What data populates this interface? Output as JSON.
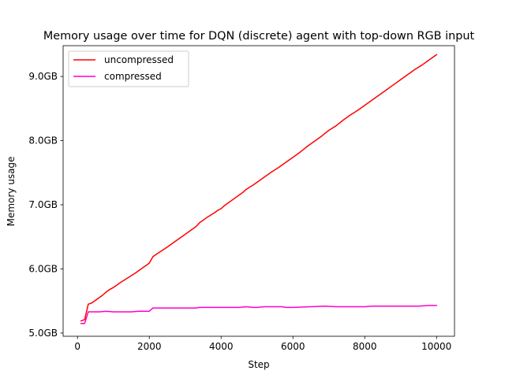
{
  "chart_data": {
    "type": "line",
    "title": "Memory usage over time for DQN (discrete) agent with top-down RGB input",
    "xlabel": "Step",
    "ylabel": "Memory usage",
    "xlim": [
      -400,
      10500
    ],
    "ylim": [
      4.95,
      9.48
    ],
    "x_ticks": [
      0,
      2000,
      4000,
      6000,
      8000,
      10000
    ],
    "x_tick_labels": [
      "0",
      "2000",
      "4000",
      "6000",
      "8000",
      "10000"
    ],
    "y_ticks": [
      5.0,
      6.0,
      7.0,
      8.0,
      9.0
    ],
    "y_tick_labels": [
      "5.0GB",
      "6.0GB",
      "7.0GB",
      "8.0GB",
      "9.0GB"
    ],
    "grid": false,
    "legend_position": "upper-left",
    "series": [
      {
        "name": "uncompressed",
        "color": "#ff0000",
        "x": [
          100,
          200,
          300,
          400,
          500,
          600,
          700,
          800,
          900,
          1000,
          1200,
          1400,
          1600,
          1700,
          1800,
          1900,
          2000,
          2100,
          2200,
          2500,
          3000,
          3300,
          3400,
          3600,
          3800,
          3900,
          4000,
          4100,
          4300,
          4500,
          4600,
          4700,
          4900,
          5000,
          5200,
          5400,
          5600,
          5700,
          5800,
          6000,
          6200,
          6400,
          6600,
          6800,
          7000,
          7200,
          7400,
          7600,
          7800,
          8000,
          8200,
          8400,
          8600,
          8800,
          9000,
          9200,
          9400,
          9600,
          9800,
          10000
        ],
        "y": [
          5.19,
          5.21,
          5.45,
          5.47,
          5.51,
          5.55,
          5.59,
          5.64,
          5.68,
          5.71,
          5.79,
          5.86,
          5.93,
          5.97,
          6.01,
          6.05,
          6.09,
          6.19,
          6.23,
          6.34,
          6.54,
          6.66,
          6.72,
          6.8,
          6.87,
          6.91,
          6.94,
          6.99,
          7.07,
          7.15,
          7.19,
          7.24,
          7.31,
          7.35,
          7.43,
          7.51,
          7.58,
          7.62,
          7.66,
          7.74,
          7.82,
          7.91,
          7.99,
          8.07,
          8.16,
          8.23,
          8.32,
          8.4,
          8.47,
          8.55,
          8.63,
          8.71,
          8.79,
          8.87,
          8.95,
          9.03,
          9.11,
          9.18,
          9.26,
          9.34
        ]
      },
      {
        "name": "compressed",
        "color": "#ff00c8",
        "x": [
          100,
          200,
          300,
          400,
          600,
          800,
          1000,
          1500,
          1700,
          2000,
          2100,
          2200,
          2500,
          3000,
          3300,
          3400,
          3600,
          3800,
          4000,
          4100,
          4500,
          4700,
          4900,
          5000,
          5200,
          5700,
          5800,
          6000,
          6500,
          6900,
          7200,
          7500,
          8000,
          8200,
          9000,
          9500,
          9800,
          10000
        ],
        "y": [
          5.15,
          5.15,
          5.33,
          5.33,
          5.33,
          5.34,
          5.33,
          5.33,
          5.34,
          5.34,
          5.39,
          5.39,
          5.39,
          5.39,
          5.39,
          5.4,
          5.4,
          5.4,
          5.4,
          5.4,
          5.4,
          5.41,
          5.4,
          5.4,
          5.41,
          5.41,
          5.4,
          5.4,
          5.41,
          5.42,
          5.41,
          5.41,
          5.41,
          5.42,
          5.42,
          5.42,
          5.43,
          5.43
        ]
      }
    ]
  }
}
